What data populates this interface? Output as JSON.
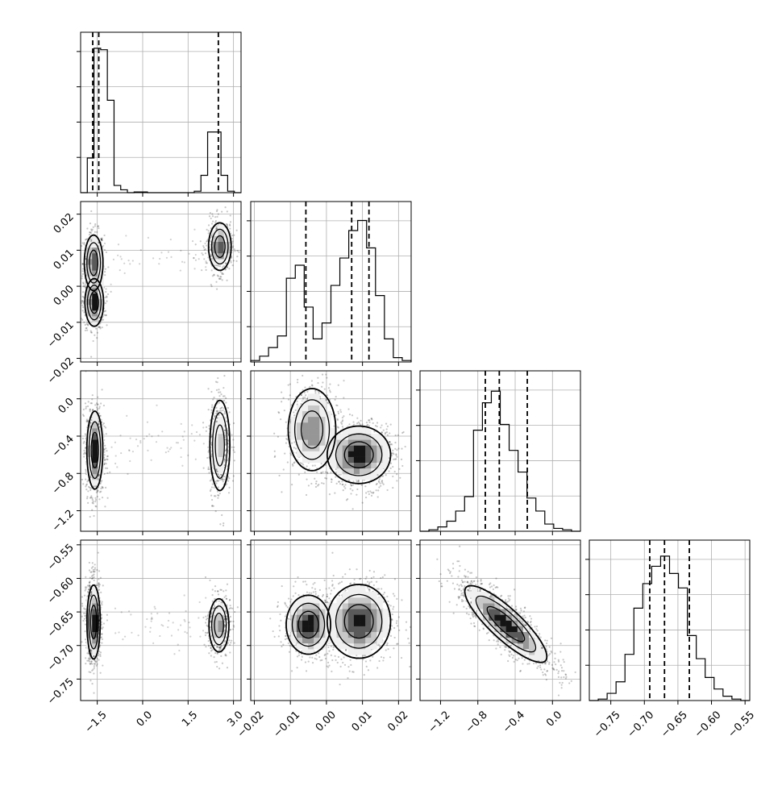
{
  "chart_data": {
    "type": "corner",
    "n_params": 4,
    "axis_titles": [
      "",
      "",
      "",
      ""
    ],
    "grid": true,
    "ranges": [
      [
        -2.05,
        3.25
      ],
      [
        -0.021,
        0.0235
      ],
      [
        -1.42,
        0.3
      ],
      [
        -0.782,
        -0.543
      ]
    ],
    "ticks": [
      {
        "values": [
          -1.5,
          0.0,
          1.5,
          3.0
        ],
        "labels": [
          "−1.5",
          "0.0",
          "1.5",
          "3.0"
        ]
      },
      {
        "values": [
          -0.02,
          -0.01,
          0.0,
          0.01,
          0.02
        ],
        "labels": [
          "−0.02",
          "−0.01",
          "0.00",
          "0.01",
          "0.02"
        ]
      },
      {
        "values": [
          -1.2,
          -0.8,
          -0.4,
          0.0
        ],
        "labels": [
          "−1.2",
          "−0.8",
          "−0.4",
          "0.0"
        ]
      },
      {
        "values": [
          -0.75,
          -0.7,
          -0.65,
          -0.6,
          -0.55
        ],
        "labels": [
          "−0.75",
          "−0.70",
          "−0.65",
          "−0.60",
          "−0.55"
        ]
      }
    ],
    "quantiles": [
      [
        -1.65,
        -1.45,
        2.5
      ],
      [
        -0.0057,
        0.007,
        0.0118
      ],
      [
        -0.72,
        -0.57,
        -0.27
      ],
      [
        -0.692,
        -0.67,
        -0.633
      ]
    ],
    "histograms": [
      {
        "counts": [
          0,
          0.24,
          1.0,
          0.99,
          0.64,
          0.05,
          0.02,
          0.0,
          0.005,
          0.005,
          0.0,
          0.0,
          0.0,
          0.0,
          0.0,
          0.0,
          0.0,
          0.01,
          0.12,
          0.42,
          0.42,
          0.12,
          0.01,
          0.0
        ]
      },
      {
        "counts": [
          0.01,
          0.04,
          0.1,
          0.18,
          0.58,
          0.67,
          0.38,
          0.16,
          0.27,
          0.53,
          0.72,
          0.91,
          0.98,
          0.79,
          0.46,
          0.16,
          0.03,
          0.01
        ]
      },
      {
        "counts": [
          0.0,
          0.01,
          0.03,
          0.07,
          0.14,
          0.24,
          0.7,
          0.89,
          0.97,
          0.74,
          0.56,
          0.41,
          0.23,
          0.14,
          0.05,
          0.02,
          0.01,
          0.0
        ]
      },
      {
        "counts": [
          0.0,
          0.01,
          0.05,
          0.13,
          0.32,
          0.64,
          0.81,
          0.93,
          1.0,
          0.88,
          0.78,
          0.45,
          0.29,
          0.16,
          0.08,
          0.03,
          0.01,
          0.0
        ]
      }
    ],
    "modes": {
      "x0": [
        {
          "mean": -1.6,
          "sd": 0.13,
          "w": 0.66
        },
        {
          "mean": 2.52,
          "sd": 0.15,
          "w": 0.34
        }
      ],
      "pairs": {
        "1-0": [
          {
            "mx": -1.62,
            "my": 0.0065,
            "sx": 0.14,
            "sy": 0.0035,
            "rho": 0.0,
            "w": 0.33
          },
          {
            "mx": -1.6,
            "my": -0.0045,
            "sx": 0.14,
            "sy": 0.003,
            "rho": 0.0,
            "w": 0.35
          },
          {
            "mx": 2.55,
            "my": 0.011,
            "sx": 0.17,
            "sy": 0.003,
            "rho": 0.0,
            "w": 0.32
          }
        ],
        "2-0": [
          {
            "mx": -1.58,
            "my": -0.55,
            "sx": 0.12,
            "sy": 0.19,
            "rho": 0.0,
            "w": 0.66
          },
          {
            "mx": 2.55,
            "my": -0.5,
            "sx": 0.15,
            "sy": 0.22,
            "rho": 0.0,
            "w": 0.34
          }
        ],
        "2-1": [
          {
            "mx": -0.004,
            "my": -0.33,
            "sx": 0.003,
            "sy": 0.2,
            "rho": 0.0,
            "w": 0.4
          },
          {
            "mx": 0.009,
            "my": -0.6,
            "sx": 0.004,
            "sy": 0.14,
            "rho": 0.0,
            "w": 0.6
          }
        ],
        "3-0": [
          {
            "mx": -1.62,
            "my": -0.665,
            "sx": 0.1,
            "sy": 0.025,
            "rho": 0.0,
            "w": 0.66
          },
          {
            "mx": 2.52,
            "my": -0.67,
            "sx": 0.15,
            "sy": 0.018,
            "rho": 0.0,
            "w": 0.34
          }
        ],
        "3-1": [
          {
            "mx": -0.005,
            "my": -0.669,
            "sx": 0.0028,
            "sy": 0.02,
            "rho": 0.0,
            "w": 0.38
          },
          {
            "mx": 0.009,
            "my": -0.664,
            "sx": 0.004,
            "sy": 0.025,
            "rho": 0.0,
            "w": 0.62
          }
        ],
        "3-2": [
          {
            "mx": -0.5,
            "my": -0.668,
            "sx": 0.2,
            "sy": 0.026,
            "rho": -0.85,
            "w": 1.0
          }
        ]
      }
    }
  }
}
